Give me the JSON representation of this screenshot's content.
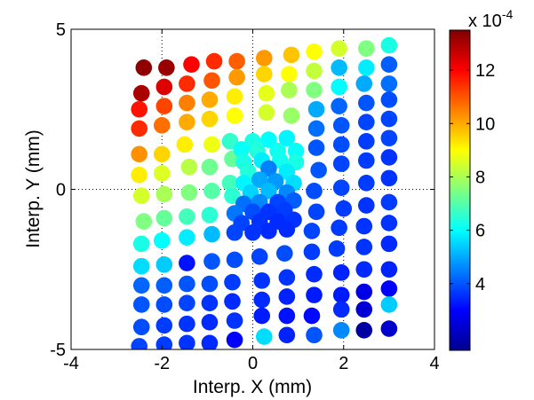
{
  "chart_data": {
    "type": "scatter",
    "xlabel": "Interp. X (mm)",
    "ylabel": "Interp. Y (mm)",
    "xlim": [
      -4,
      4
    ],
    "ylim": [
      -5,
      5
    ],
    "x_ticks": [
      "-4",
      "-2",
      "0",
      "2",
      "4"
    ],
    "y_ticks": [
      "-5",
      "0",
      "5"
    ],
    "grid": "dotted lines at x=0, y=0, x=-2, x=2",
    "colorbar": {
      "colormap": "jet",
      "range": [
        1.5,
        13.5
      ],
      "ticks": [
        "4",
        "6",
        "8",
        "10",
        "12"
      ],
      "exponent_label": "x 10",
      "exponent_value": "-4"
    },
    "points": [
      {
        "x": -2.4,
        "y": 3.8,
        "c": 13.3
      },
      {
        "x": -1.9,
        "y": 3.8,
        "c": 13.2
      },
      {
        "x": -1.35,
        "y": 3.9,
        "c": 12.0
      },
      {
        "x": -0.85,
        "y": 4.0,
        "c": 11.5
      },
      {
        "x": -0.35,
        "y": 4.0,
        "c": 10.9
      },
      {
        "x": 0.25,
        "y": 4.1,
        "c": 10.2
      },
      {
        "x": 0.85,
        "y": 4.2,
        "c": 9.7
      },
      {
        "x": 1.35,
        "y": 4.3,
        "c": 9.0
      },
      {
        "x": 1.9,
        "y": 4.4,
        "c": 8.5
      },
      {
        "x": 2.5,
        "y": 4.4,
        "c": 7.5
      },
      {
        "x": 3.0,
        "y": 4.5,
        "c": 6.3
      },
      {
        "x": -2.45,
        "y": 3.0,
        "c": 13.0
      },
      {
        "x": -1.95,
        "y": 3.2,
        "c": 12.4
      },
      {
        "x": -1.45,
        "y": 3.3,
        "c": 11.5
      },
      {
        "x": -0.9,
        "y": 3.4,
        "c": 11.0
      },
      {
        "x": -0.35,
        "y": 3.5,
        "c": 10.2
      },
      {
        "x": 0.25,
        "y": 3.6,
        "c": 9.5
      },
      {
        "x": 0.8,
        "y": 3.6,
        "c": 9.0
      },
      {
        "x": 1.35,
        "y": 3.7,
        "c": 8.3
      },
      {
        "x": 1.9,
        "y": 3.8,
        "c": 5.2
      },
      {
        "x": 2.5,
        "y": 3.8,
        "c": 5.8
      },
      {
        "x": 3.0,
        "y": 3.9,
        "c": 4.1
      },
      {
        "x": -2.5,
        "y": 2.5,
        "c": 11.8
      },
      {
        "x": -1.95,
        "y": 2.6,
        "c": 11.2
      },
      {
        "x": -1.45,
        "y": 2.7,
        "c": 10.5
      },
      {
        "x": -0.95,
        "y": 2.8,
        "c": 10.0
      },
      {
        "x": -0.4,
        "y": 2.9,
        "c": 9.2
      },
      {
        "x": 0.3,
        "y": 3.0,
        "c": 8.7
      },
      {
        "x": 0.8,
        "y": 3.1,
        "c": 8.0
      },
      {
        "x": 1.35,
        "y": 3.1,
        "c": 7.5
      },
      {
        "x": 1.9,
        "y": 3.2,
        "c": 6.0
      },
      {
        "x": 2.45,
        "y": 3.3,
        "c": 5.0
      },
      {
        "x": 3.0,
        "y": 3.3,
        "c": 4.3
      },
      {
        "x": -2.5,
        "y": 1.9,
        "c": 11.5
      },
      {
        "x": -2.0,
        "y": 2.0,
        "c": 10.7
      },
      {
        "x": -1.45,
        "y": 2.1,
        "c": 10.0
      },
      {
        "x": -0.95,
        "y": 2.2,
        "c": 9.5
      },
      {
        "x": -0.4,
        "y": 2.3,
        "c": 9.0
      },
      {
        "x": 0.3,
        "y": 2.4,
        "c": 8.5
      },
      {
        "x": 0.85,
        "y": 2.3,
        "c": 7.8
      },
      {
        "x": 1.4,
        "y": 2.5,
        "c": 5.0
      },
      {
        "x": 1.9,
        "y": 2.6,
        "c": 4.2
      },
      {
        "x": 2.5,
        "y": 2.7,
        "c": 4.0
      },
      {
        "x": 3.0,
        "y": 2.8,
        "c": 3.9
      },
      {
        "x": -1.5,
        "y": 1.4,
        "c": 9.2
      },
      {
        "x": -0.9,
        "y": 1.4,
        "c": 8.8
      },
      {
        "x": -2.5,
        "y": 1.1,
        "c": 10.3
      },
      {
        "x": -2.0,
        "y": 1.1,
        "c": 9.5
      },
      {
        "x": 1.4,
        "y": 1.9,
        "c": 4.3
      },
      {
        "x": 1.95,
        "y": 2.0,
        "c": 4.0
      },
      {
        "x": 2.5,
        "y": 2.1,
        "c": 3.8
      },
      {
        "x": 3.0,
        "y": 2.2,
        "c": 3.8
      },
      {
        "x": 1.4,
        "y": 1.3,
        "c": 4.0
      },
      {
        "x": 1.95,
        "y": 1.4,
        "c": 3.9
      },
      {
        "x": 2.5,
        "y": 1.5,
        "c": 3.7
      },
      {
        "x": 3.0,
        "y": 1.6,
        "c": 3.8
      },
      {
        "x": 1.45,
        "y": 0.6,
        "c": 4.0
      },
      {
        "x": 1.95,
        "y": 0.8,
        "c": 3.8
      },
      {
        "x": 2.5,
        "y": 0.9,
        "c": 3.7
      },
      {
        "x": 3.0,
        "y": 1.0,
        "c": 3.6
      },
      {
        "x": -0.5,
        "y": 1.5,
        "c": 6.6
      },
      {
        "x": -0.45,
        "y": 0.95,
        "c": 7.2
      },
      {
        "x": -0.5,
        "y": 0.2,
        "c": 6.8
      },
      {
        "x": -1.4,
        "y": 0.7,
        "c": 8.2
      },
      {
        "x": -0.95,
        "y": 0.7,
        "c": 7.3
      },
      {
        "x": -2.5,
        "y": 0.45,
        "c": 9.2
      },
      {
        "x": -2.0,
        "y": 0.5,
        "c": 8.6
      },
      {
        "x": -2.45,
        "y": -0.2,
        "c": 8.5
      },
      {
        "x": -1.95,
        "y": -0.15,
        "c": 8.0
      },
      {
        "x": -1.4,
        "y": -0.1,
        "c": 7.5
      },
      {
        "x": -0.9,
        "y": -0.05,
        "c": 7.0
      },
      {
        "x": -0.45,
        "y": -0.2,
        "c": 6.5
      },
      {
        "x": -2.4,
        "y": -1.0,
        "c": 7.5
      },
      {
        "x": -1.95,
        "y": -0.9,
        "c": 7.2
      },
      {
        "x": -1.45,
        "y": -0.85,
        "c": 6.8
      },
      {
        "x": -0.95,
        "y": -0.8,
        "c": 6.5
      },
      {
        "x": -2.45,
        "y": -1.7,
        "c": 6.3
      },
      {
        "x": -2.0,
        "y": -1.6,
        "c": 6.0
      },
      {
        "x": -1.45,
        "y": -1.5,
        "c": 5.8
      },
      {
        "x": -0.9,
        "y": -1.4,
        "c": 5.2
      },
      {
        "x": -0.4,
        "y": -1.35,
        "c": 4.5
      },
      {
        "x": -2.45,
        "y": -2.4,
        "c": 5.6
      },
      {
        "x": -1.95,
        "y": -2.35,
        "c": 5.4
      },
      {
        "x": -1.45,
        "y": -2.3,
        "c": 3.2
      },
      {
        "x": -0.9,
        "y": -2.25,
        "c": 4.0
      },
      {
        "x": -0.4,
        "y": -2.2,
        "c": 3.9
      },
      {
        "x": 0.15,
        "y": -2.1,
        "c": 3.8
      },
      {
        "x": 0.7,
        "y": -2.0,
        "c": 3.9
      },
      {
        "x": 1.3,
        "y": -1.95,
        "c": 3.7
      },
      {
        "x": 1.85,
        "y": -1.85,
        "c": 3.7
      },
      {
        "x": 2.45,
        "y": -1.8,
        "c": 3.6
      },
      {
        "x": 3.0,
        "y": -1.7,
        "c": 3.5
      },
      {
        "x": -2.45,
        "y": -3.0,
        "c": 4.2
      },
      {
        "x": -1.95,
        "y": -3.0,
        "c": 4.1
      },
      {
        "x": -1.45,
        "y": -2.95,
        "c": 4.0
      },
      {
        "x": -0.95,
        "y": -2.95,
        "c": 3.9
      },
      {
        "x": -0.45,
        "y": -2.9,
        "c": 3.7
      },
      {
        "x": 0.2,
        "y": -2.85,
        "c": 3.6
      },
      {
        "x": 0.75,
        "y": -2.75,
        "c": 3.6
      },
      {
        "x": 1.35,
        "y": -2.65,
        "c": 3.5
      },
      {
        "x": 1.95,
        "y": -2.6,
        "c": 3.4
      },
      {
        "x": 2.45,
        "y": -2.5,
        "c": 3.5
      },
      {
        "x": 3.0,
        "y": -2.5,
        "c": 3.4
      },
      {
        "x": -2.45,
        "y": -3.6,
        "c": 4.0
      },
      {
        "x": -1.95,
        "y": -3.6,
        "c": 3.9
      },
      {
        "x": -1.45,
        "y": -3.55,
        "c": 3.8
      },
      {
        "x": -0.95,
        "y": -3.55,
        "c": 3.6
      },
      {
        "x": -0.45,
        "y": -3.5,
        "c": 3.5
      },
      {
        "x": 0.2,
        "y": -3.45,
        "c": 3.5
      },
      {
        "x": 0.75,
        "y": -3.35,
        "c": 3.4
      },
      {
        "x": 1.35,
        "y": -3.3,
        "c": 3.3
      },
      {
        "x": 1.95,
        "y": -3.3,
        "c": 3.3
      },
      {
        "x": 2.45,
        "y": -3.2,
        "c": 2.7
      },
      {
        "x": 3.0,
        "y": -3.1,
        "c": 3.0
      },
      {
        "x": -2.45,
        "y": -4.3,
        "c": 3.9
      },
      {
        "x": -1.95,
        "y": -4.25,
        "c": 3.7
      },
      {
        "x": -1.45,
        "y": -4.2,
        "c": 3.6
      },
      {
        "x": -0.95,
        "y": -4.15,
        "c": 3.5
      },
      {
        "x": -0.4,
        "y": -4.1,
        "c": 3.6
      },
      {
        "x": 0.2,
        "y": -3.95,
        "c": 3.3
      },
      {
        "x": 0.75,
        "y": -3.95,
        "c": 3.2
      },
      {
        "x": 1.3,
        "y": -3.95,
        "c": 3.1
      },
      {
        "x": 1.95,
        "y": -3.75,
        "c": 3.5
      },
      {
        "x": 2.45,
        "y": -3.75,
        "c": 2.5
      },
      {
        "x": 3.0,
        "y": -3.6,
        "c": 5.4
      },
      {
        "x": -2.5,
        "y": -4.9,
        "c": 3.8
      },
      {
        "x": -1.95,
        "y": -4.85,
        "c": 3.7
      },
      {
        "x": -1.45,
        "y": -4.8,
        "c": 3.6
      },
      {
        "x": -0.95,
        "y": -4.8,
        "c": 3.5
      },
      {
        "x": -0.4,
        "y": -4.7,
        "c": 3.0
      },
      {
        "x": 0.25,
        "y": -4.6,
        "c": 5.6
      },
      {
        "x": 0.75,
        "y": -4.55,
        "c": 3.4
      },
      {
        "x": 1.35,
        "y": -4.55,
        "c": 4.0
      },
      {
        "x": 1.95,
        "y": -4.4,
        "c": 4.6
      },
      {
        "x": 2.45,
        "y": -4.4,
        "c": 1.9
      },
      {
        "x": 3.0,
        "y": -4.35,
        "c": 2.4
      },
      {
        "x": 1.35,
        "y": -0.05,
        "c": 3.9
      },
      {
        "x": 1.95,
        "y": 0.05,
        "c": 3.8
      },
      {
        "x": 2.5,
        "y": 0.2,
        "c": 3.7
      },
      {
        "x": 3.0,
        "y": 0.35,
        "c": 3.6
      },
      {
        "x": 1.4,
        "y": -0.7,
        "c": 3.8
      },
      {
        "x": 2.0,
        "y": -0.6,
        "c": 3.7
      },
      {
        "x": 2.5,
        "y": -0.5,
        "c": 3.6
      },
      {
        "x": 3.0,
        "y": -0.4,
        "c": 3.7
      },
      {
        "x": 1.3,
        "y": -1.3,
        "c": 3.8
      },
      {
        "x": 1.9,
        "y": -1.2,
        "c": 3.7
      },
      {
        "x": 2.45,
        "y": -1.15,
        "c": 3.6
      },
      {
        "x": 3.0,
        "y": -1.05,
        "c": 3.6
      },
      {
        "x": 0.0,
        "y": 1.5,
        "c": 6.3
      },
      {
        "x": 0.35,
        "y": 1.55,
        "c": 6.0
      },
      {
        "x": 0.75,
        "y": 1.6,
        "c": 5.9
      },
      {
        "x": -0.25,
        "y": 1.25,
        "c": 6.1
      },
      {
        "x": 0.1,
        "y": 1.2,
        "c": 6.4
      },
      {
        "x": 0.55,
        "y": 1.2,
        "c": 6.2
      },
      {
        "x": 0.95,
        "y": 1.2,
        "c": 6.1
      },
      {
        "x": -0.2,
        "y": 0.85,
        "c": 6.3
      },
      {
        "x": 0.2,
        "y": 0.9,
        "c": 5.8
      },
      {
        "x": 0.6,
        "y": 0.9,
        "c": 6.2
      },
      {
        "x": 0.95,
        "y": 0.85,
        "c": 6.3
      },
      {
        "x": -0.1,
        "y": 0.55,
        "c": 6.4
      },
      {
        "x": 0.35,
        "y": 0.65,
        "c": 4.5
      },
      {
        "x": 0.75,
        "y": 0.55,
        "c": 5.8
      },
      {
        "x": -0.2,
        "y": 0.2,
        "c": 5.9
      },
      {
        "x": 0.15,
        "y": 0.3,
        "c": 5.0
      },
      {
        "x": 0.5,
        "y": 0.25,
        "c": 4.8
      },
      {
        "x": 0.9,
        "y": 0.2,
        "c": 5.6
      },
      {
        "x": -0.05,
        "y": -0.1,
        "c": 5.5
      },
      {
        "x": 0.35,
        "y": -0.05,
        "c": 5.2
      },
      {
        "x": 0.75,
        "y": -0.1,
        "c": 4.6
      },
      {
        "x": -0.2,
        "y": -0.45,
        "c": 4.3
      },
      {
        "x": 0.15,
        "y": -0.4,
        "c": 4.6
      },
      {
        "x": 0.55,
        "y": -0.4,
        "c": 3.8
      },
      {
        "x": 0.9,
        "y": -0.35,
        "c": 4.1
      },
      {
        "x": -0.4,
        "y": -0.75,
        "c": 4.4
      },
      {
        "x": 0.0,
        "y": -0.7,
        "c": 3.9
      },
      {
        "x": 0.35,
        "y": -0.7,
        "c": 3.6
      },
      {
        "x": 0.7,
        "y": -0.65,
        "c": 3.7
      },
      {
        "x": -0.25,
        "y": -1.05,
        "c": 3.8
      },
      {
        "x": 0.15,
        "y": -1.0,
        "c": 3.6
      },
      {
        "x": 0.55,
        "y": -1.0,
        "c": 3.5
      },
      {
        "x": 0.9,
        "y": -0.95,
        "c": 3.6
      },
      {
        "x": -0.4,
        "y": -1.35,
        "c": 3.8
      },
      {
        "x": 0.0,
        "y": -1.35,
        "c": 3.6
      },
      {
        "x": 0.35,
        "y": -1.3,
        "c": 3.5
      },
      {
        "x": 0.75,
        "y": -1.25,
        "c": 3.5
      }
    ]
  }
}
